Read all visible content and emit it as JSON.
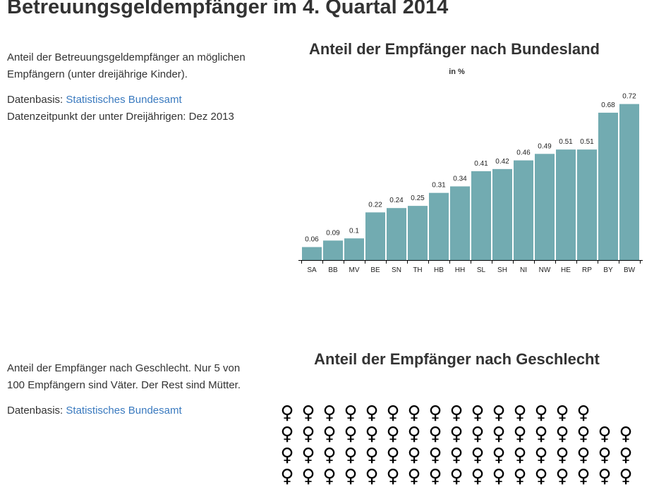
{
  "page": {
    "title": "Betreuungsgeldempfänger im 4. Quartal 2014"
  },
  "section_bundesland": {
    "description": "Anteil der Betreuungsgeldempfänger an möglichen Empfängern (unter dreijährige Kinder).",
    "source_prefix": "Datenbasis: ",
    "source_link": "Statistisches Bundesamt",
    "date_note": "Datenzeitpunkt der unter Dreijährigen: Dez 2013"
  },
  "section_geschlecht": {
    "description": "Anteil der Empfänger nach Geschlecht. Nur 5 von 100 Empfängern sind Väter. Der Rest sind Mütter.",
    "source_prefix": "Datenbasis: ",
    "source_link": "Statistisches Bundesamt"
  },
  "chart_data": [
    {
      "type": "bar",
      "title": "Anteil der Empfänger nach Bundesland",
      "subtitle": "in %",
      "categories": [
        "SA",
        "BB",
        "MV",
        "BE",
        "SN",
        "TH",
        "HB",
        "HH",
        "SL",
        "SH",
        "NI",
        "NW",
        "HE",
        "RP",
        "BY",
        "BW"
      ],
      "values": [
        0.06,
        0.09,
        0.1,
        0.22,
        0.24,
        0.25,
        0.31,
        0.34,
        0.41,
        0.42,
        0.46,
        0.49,
        0.51,
        0.51,
        0.68,
        0.72
      ],
      "ylim": [
        0,
        0.8
      ],
      "grid": false,
      "color": "#72abb1"
    },
    {
      "type": "pictogram",
      "title": "Anteil der Empfänger nach Geschlecht",
      "symbol": "♀",
      "icon_name": "female-symbol-icon",
      "color": "#000000",
      "visible_rows": [
        15,
        17,
        17,
        17
      ]
    }
  ]
}
